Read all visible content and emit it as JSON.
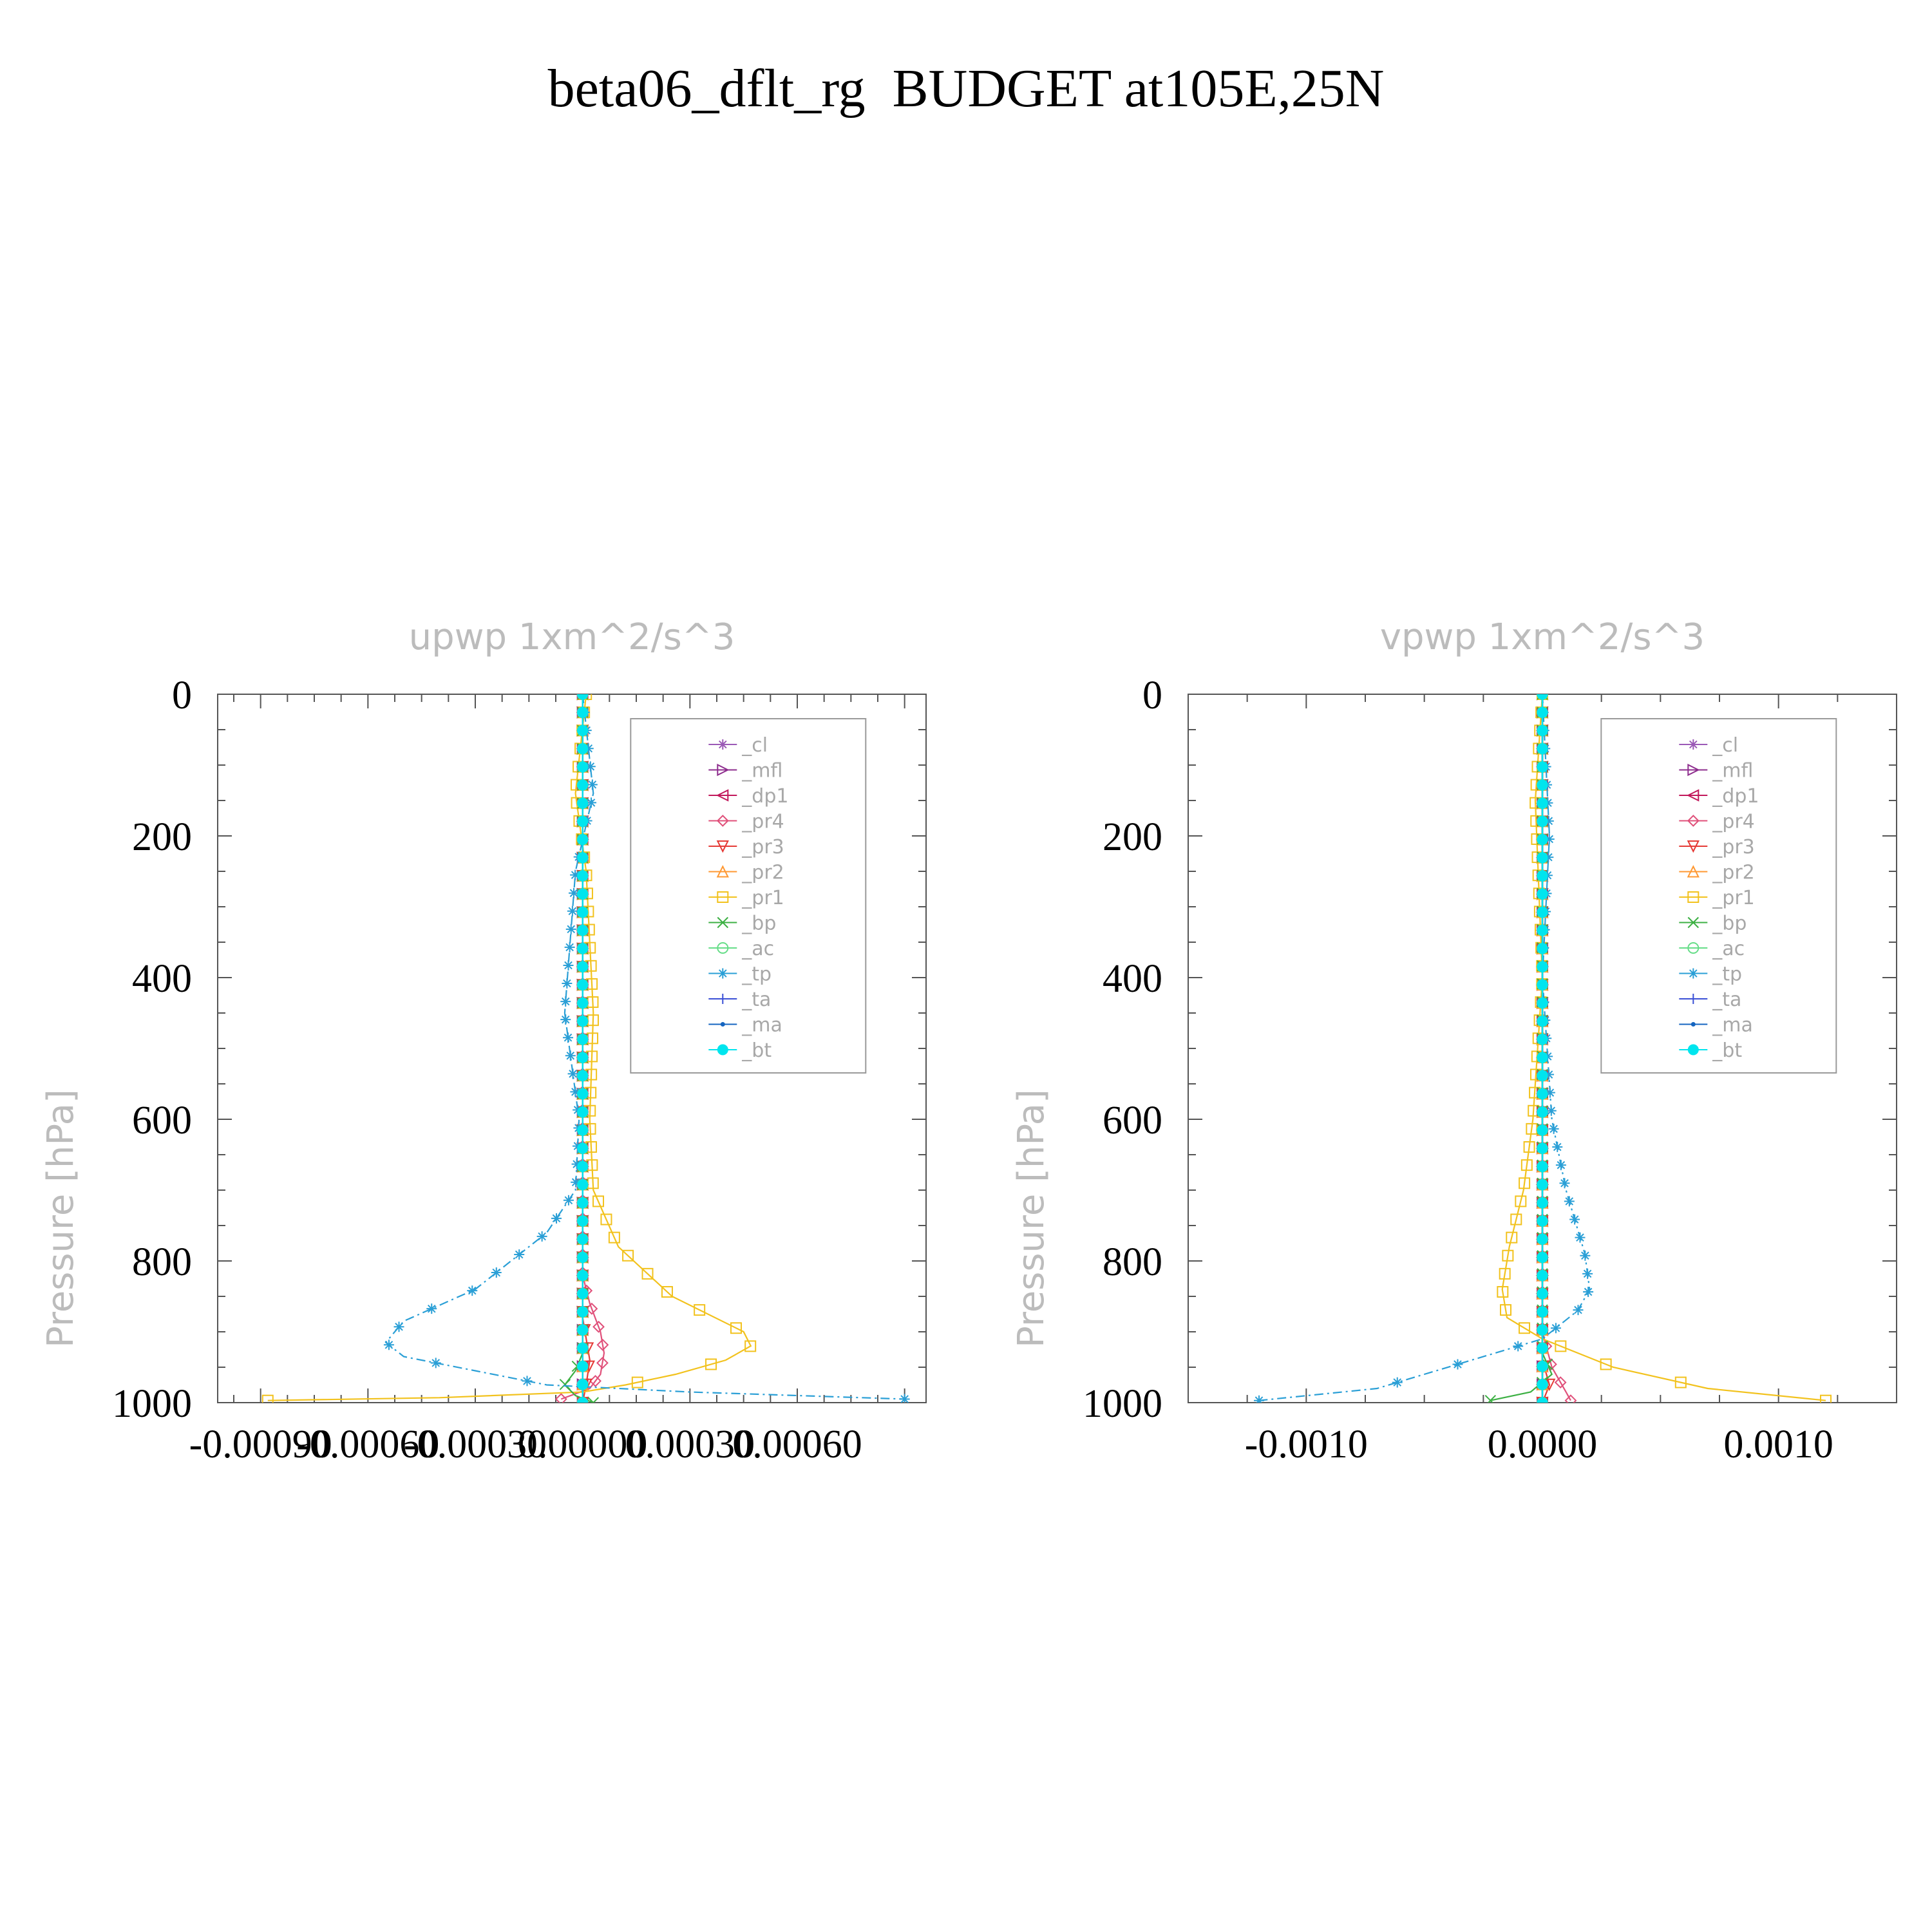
{
  "figure": {
    "title": "beta06_dflt_rg  BUDGET at105E,25N"
  },
  "chart_data": [
    {
      "type": "line",
      "title": "upwp    1xm^2/s^3",
      "ylabel": "Pressure  [hPa]",
      "xlabel": "",
      "xlim": [
        -0.00102,
        0.00096
      ],
      "ylim": [
        1000,
        0
      ],
      "xticks": [
        -0.0009,
        -0.0006,
        -0.0003,
        0.0,
        0.0003,
        0.0006
      ],
      "xtick_labels": [
        "-0.00090",
        "-0.00060",
        "-0.00030",
        "0.00000",
        "0.00030",
        "0.00060"
      ],
      "yticks": [
        0,
        200,
        400,
        600,
        800,
        1000
      ],
      "ytick_labels": [
        "0",
        "200",
        "400",
        "600",
        "800",
        "1000"
      ],
      "legend_position": "top-right",
      "series": [
        {
          "name": "_cl",
          "color": "#9b59b6",
          "marker": "star",
          "points": [
            [
              0.0,
              0
            ],
            [
              0.0,
              1000
            ]
          ]
        },
        {
          "name": "_mfl",
          "color": "#8e2d8e",
          "marker": "tri-right",
          "points": [
            [
              0.0,
              0
            ],
            [
              0.0,
              1000
            ]
          ]
        },
        {
          "name": "_dp1",
          "color": "#c2185b",
          "marker": "tri-left",
          "points": [
            [
              0.0,
              0
            ],
            [
              0.0,
              1000
            ]
          ]
        },
        {
          "name": "_pr4",
          "color": "#e0507a",
          "marker": "diamond",
          "points": [
            [
              0.0,
              0
            ],
            [
              0.0,
              820
            ],
            [
              2e-05,
              860
            ],
            [
              5e-05,
              900
            ],
            [
              6e-05,
              930
            ],
            [
              5e-05,
              960
            ],
            [
              2e-05,
              980
            ],
            [
              -6e-05,
              995
            ]
          ]
        },
        {
          "name": "_pr3",
          "color": "#e53935",
          "marker": "tri-down",
          "points": [
            [
              0.0,
              0
            ],
            [
              0.0,
              880
            ],
            [
              2e-05,
              940
            ],
            [
              1e-05,
              975
            ],
            [
              0.0,
              1000
            ]
          ]
        },
        {
          "name": "_pr2",
          "color": "#ff9933",
          "marker": "tri-up",
          "points": [
            [
              0.0,
              0
            ],
            [
              0.0,
              1000
            ]
          ]
        },
        {
          "name": "_pr1",
          "color": "#f2c21d",
          "marker": "square",
          "points": [
            [
              1e-05,
              0
            ],
            [
              -2e-05,
              140
            ],
            [
              1e-05,
              250
            ],
            [
              3e-05,
              450
            ],
            [
              2e-05,
              600
            ],
            [
              3e-05,
              700
            ],
            [
              0.0001,
              780
            ],
            [
              0.00025,
              850
            ],
            [
              0.00045,
              900
            ],
            [
              0.00047,
              920
            ],
            [
              0.0004,
              940
            ],
            [
              0.00026,
              960
            ],
            [
              0.00012,
              975
            ],
            [
              0.0,
              985
            ],
            [
              -0.0004,
              993
            ],
            [
              -0.00088,
              997
            ]
          ]
        },
        {
          "name": "_bp",
          "color": "#3cb043",
          "marker": "x",
          "points": [
            [
              0.0,
              0
            ],
            [
              0.0,
              930
            ],
            [
              -2e-05,
              955
            ],
            [
              -5e-05,
              975
            ],
            [
              -2e-05,
              990
            ],
            [
              3e-05,
              1000
            ]
          ]
        },
        {
          "name": "_ac",
          "color": "#66dd88",
          "marker": "circle",
          "points": [
            [
              0.0,
              0
            ],
            [
              0.0,
              1000
            ]
          ]
        },
        {
          "name": "_tp",
          "color": "#2a9fd6",
          "marker": "asterisk",
          "points": [
            [
              0.0,
              0
            ],
            [
              3e-05,
              140
            ],
            [
              -2e-05,
              250
            ],
            [
              -5e-05,
              450
            ],
            [
              -1e-05,
              600
            ],
            [
              -2e-05,
              700
            ],
            [
              -0.0001,
              760
            ],
            [
              -0.0003,
              840
            ],
            [
              -0.0005,
              885
            ],
            [
              -0.00055,
              915
            ],
            [
              -0.0005,
              935
            ],
            [
              -0.0003,
              955
            ],
            [
              -0.0001,
              975
            ],
            [
              0.0003,
              985
            ],
            [
              0.0009,
              995
            ]
          ]
        },
        {
          "name": "_ta",
          "color": "#3a4fd6",
          "marker": "plus",
          "points": [
            [
              0.0,
              0
            ],
            [
              0.0,
              1000
            ]
          ]
        },
        {
          "name": "_ma",
          "color": "#1565c0",
          "marker": "dot",
          "points": [
            [
              0.0,
              0
            ],
            [
              0.0,
              1000
            ]
          ]
        },
        {
          "name": "_bt",
          "color": "#00e5ee",
          "marker": "filled-circle",
          "points": [
            [
              0.0,
              0
            ],
            [
              0.0,
              1000
            ]
          ]
        }
      ]
    },
    {
      "type": "line",
      "title": "vpwp    1xm^2/s^3",
      "ylabel": "Pressure  [hPa]",
      "xlabel": "",
      "xlim": [
        -0.0015,
        0.0015
      ],
      "ylim": [
        1000,
        0
      ],
      "xticks": [
        -0.001,
        0.0,
        0.001
      ],
      "xtick_labels": [
        "-0.0010",
        "0.0000",
        "0.0010"
      ],
      "yticks": [
        0,
        200,
        400,
        600,
        800,
        1000
      ],
      "ytick_labels": [
        "0",
        "200",
        "400",
        "600",
        "800",
        "1000"
      ],
      "legend_position": "top-right",
      "series": [
        {
          "name": "_cl",
          "color": "#9b59b6",
          "marker": "star",
          "points": [
            [
              0.0,
              0
            ],
            [
              0.0,
              1000
            ]
          ]
        },
        {
          "name": "_mfl",
          "color": "#8e2d8e",
          "marker": "tri-right",
          "points": [
            [
              0.0,
              0
            ],
            [
              0.0,
              1000
            ]
          ]
        },
        {
          "name": "_dp1",
          "color": "#c2185b",
          "marker": "tri-left",
          "points": [
            [
              0.0,
              0
            ],
            [
              0.0,
              1000
            ]
          ]
        },
        {
          "name": "_pr4",
          "color": "#e0507a",
          "marker": "diamond",
          "points": [
            [
              0.0,
              0
            ],
            [
              0.0,
              900
            ],
            [
              4e-05,
              950
            ],
            [
              0.0001,
              985
            ],
            [
              0.00012,
              997
            ]
          ]
        },
        {
          "name": "_pr3",
          "color": "#e53935",
          "marker": "tri-down",
          "points": [
            [
              0.0,
              0
            ],
            [
              0.0,
              940
            ],
            [
              3e-05,
              975
            ],
            [
              0.0,
              1000
            ]
          ]
        },
        {
          "name": "_pr2",
          "color": "#ff9933",
          "marker": "tri-up",
          "points": [
            [
              0.0,
              0
            ],
            [
              0.0,
              1000
            ]
          ]
        },
        {
          "name": "_pr1",
          "color": "#f2c21d",
          "marker": "square",
          "points": [
            [
              0.0,
              0
            ],
            [
              -3e-05,
              150
            ],
            [
              0.0,
              400
            ],
            [
              -4e-05,
              600
            ],
            [
              -8e-05,
              700
            ],
            [
              -0.00014,
              780
            ],
            [
              -0.00017,
              840
            ],
            [
              -0.00015,
              880
            ],
            [
              0.0,
              910
            ],
            [
              0.0003,
              950
            ],
            [
              0.0007,
              980
            ],
            [
              0.0012,
              997
            ]
          ]
        },
        {
          "name": "_bp",
          "color": "#3cb043",
          "marker": "x",
          "points": [
            [
              0.0,
              0
            ],
            [
              0.0,
              930
            ],
            [
              4e-05,
              960
            ],
            [
              -5e-05,
              985
            ],
            [
              -0.00022,
              997
            ]
          ]
        },
        {
          "name": "_ac",
          "color": "#66dd88",
          "marker": "circle",
          "points": [
            [
              0.0,
              0
            ],
            [
              0.0,
              1000
            ]
          ]
        },
        {
          "name": "_tp",
          "color": "#2a9fd6",
          "marker": "asterisk",
          "points": [
            [
              0.0,
              0
            ],
            [
              3e-05,
              200
            ],
            [
              0.0,
              400
            ],
            [
              4e-05,
              600
            ],
            [
              0.0001,
              700
            ],
            [
              0.00018,
              790
            ],
            [
              0.0002,
              840
            ],
            [
              0.00015,
              870
            ],
            [
              0.0,
              910
            ],
            [
              -0.0003,
              940
            ],
            [
              -0.0007,
              980
            ],
            [
              -0.0012,
              997
            ]
          ]
        },
        {
          "name": "_ta",
          "color": "#3a4fd6",
          "marker": "plus",
          "points": [
            [
              0.0,
              0
            ],
            [
              0.0,
              1000
            ]
          ]
        },
        {
          "name": "_ma",
          "color": "#1565c0",
          "marker": "dot",
          "points": [
            [
              0.0,
              0
            ],
            [
              0.0,
              1000
            ]
          ]
        },
        {
          "name": "_bt",
          "color": "#00e5ee",
          "marker": "filled-circle",
          "points": [
            [
              0.0,
              0
            ],
            [
              0.0,
              1000
            ]
          ]
        }
      ]
    }
  ]
}
